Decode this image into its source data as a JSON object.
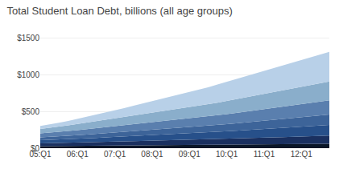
{
  "chart_data": {
    "type": "area",
    "title": "Total Student Loan Debt, billions (all age groups)",
    "stacked": true,
    "grid": "y",
    "categories": [
      "05:Q1",
      null,
      null,
      null,
      "06:Q1",
      null,
      null,
      null,
      "07:Q1",
      null,
      null,
      null,
      "08:Q1",
      null,
      null,
      null,
      "09:Q1",
      null,
      null,
      null,
      "10:Q1",
      null,
      null,
      null,
      "11:Q1",
      null,
      null,
      null,
      "12:Q1",
      null,
      null,
      null
    ],
    "ylim": [
      0,
      1600
    ],
    "yticks": [
      {
        "value": 0,
        "label": "$0"
      },
      {
        "value": 500,
        "label": "$500"
      },
      {
        "value": 1000,
        "label": "$1000"
      },
      {
        "value": 1500,
        "label": "$1500"
      }
    ],
    "series": [
      {
        "color": "#0a1628",
        "values": [
          28,
          29,
          30,
          31,
          32,
          33,
          34,
          35,
          36,
          37,
          38,
          39,
          40,
          41,
          42,
          43,
          44,
          45,
          46,
          47,
          48,
          49,
          50,
          51,
          52,
          53,
          54,
          55,
          56,
          57,
          58,
          59
        ]
      },
      {
        "color": "#1a3060",
        "values": [
          38,
          39,
          41,
          43,
          45,
          47,
          49,
          51,
          53,
          55,
          57,
          59,
          61,
          63,
          65,
          67,
          69,
          71,
          73,
          76,
          79,
          82,
          85,
          88,
          91,
          94,
          97,
          100,
          103,
          106,
          109,
          112
        ]
      },
      {
        "color": "#27508a",
        "values": [
          42,
          44,
          46,
          48,
          51,
          54,
          57,
          60,
          63,
          66,
          69,
          72,
          75,
          78,
          81,
          84,
          87,
          90,
          93,
          97,
          101,
          105,
          109,
          113,
          117,
          121,
          125,
          129,
          133,
          137,
          141,
          145
        ]
      },
      {
        "color": "#3d6499",
        "values": [
          38,
          40,
          42,
          45,
          48,
          51,
          54,
          57,
          60,
          63,
          66,
          69,
          72,
          75,
          78,
          81,
          84,
          87,
          90,
          94,
          98,
          102,
          106,
          110,
          114,
          118,
          122,
          126,
          130,
          134,
          138,
          142
        ]
      },
      {
        "color": "#5a7fae",
        "values": [
          55,
          58,
          62,
          66,
          70,
          74,
          78,
          82,
          86,
          90,
          94,
          98,
          102,
          106,
          110,
          114,
          118,
          122,
          126,
          131,
          136,
          141,
          146,
          151,
          156,
          161,
          166,
          171,
          176,
          181,
          186,
          191
        ]
      },
      {
        "color": "#8aaecb",
        "values": [
          60,
          65,
          71,
          77,
          83,
          89,
          95,
          101,
          107,
          113,
          119,
          125,
          131,
          137,
          143,
          149,
          155,
          161,
          167,
          174,
          181,
          188,
          195,
          202,
          209,
          216,
          223,
          230,
          237,
          244,
          251,
          258
        ]
      },
      {
        "color": "#b8d0e8",
        "values": [
          40,
          46,
          53,
          61,
          70,
          79,
          89,
          99,
          110,
          121,
          133,
          145,
          157,
          169,
          181,
          194,
          207,
          220,
          233,
          246,
          259,
          272,
          285,
          298,
          311,
          324,
          337,
          350,
          363,
          376,
          389,
          402
        ]
      }
    ]
  }
}
